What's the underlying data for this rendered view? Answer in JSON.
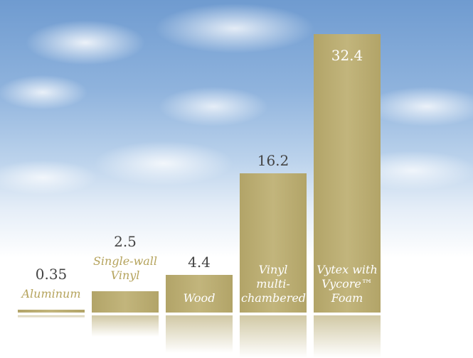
{
  "chart_data": {
    "type": "bar",
    "categories": [
      "Aluminum",
      "Single-wall Vinyl",
      "Wood",
      "Vinyl multi-chambered",
      "Vytex with Vycore™ Foam"
    ],
    "values": [
      0.35,
      2.5,
      4.4,
      16.2,
      32.4
    ],
    "color": "#b2a468"
  }
}
